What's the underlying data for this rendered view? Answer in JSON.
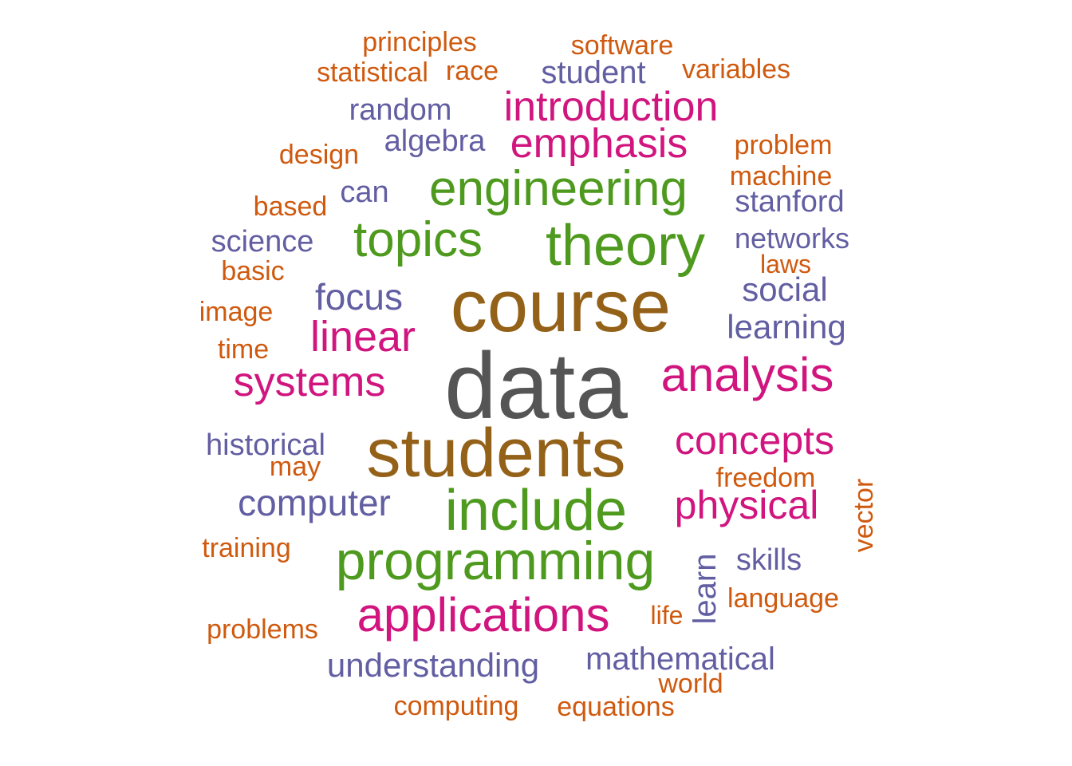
{
  "colors": {
    "gray": "#555555",
    "brown": "#946119",
    "green": "#4e9a1e",
    "magenta": "#d1157f",
    "purple": "#625ea2",
    "orange": "#cf5a0f"
  },
  "words": [
    {
      "text": "data",
      "color": "gray"
    },
    {
      "text": "course",
      "color": "brown"
    },
    {
      "text": "students",
      "color": "brown"
    },
    {
      "text": "theory",
      "color": "green"
    },
    {
      "text": "include",
      "color": "green"
    },
    {
      "text": "programming",
      "color": "green"
    },
    {
      "text": "engineering",
      "color": "green"
    },
    {
      "text": "topics",
      "color": "green"
    },
    {
      "text": "analysis",
      "color": "magenta"
    },
    {
      "text": "applications",
      "color": "magenta"
    },
    {
      "text": "introduction",
      "color": "magenta"
    },
    {
      "text": "emphasis",
      "color": "magenta"
    },
    {
      "text": "linear",
      "color": "magenta"
    },
    {
      "text": "systems",
      "color": "magenta"
    },
    {
      "text": "concepts",
      "color": "magenta"
    },
    {
      "text": "physical",
      "color": "magenta"
    },
    {
      "text": "focus",
      "color": "purple"
    },
    {
      "text": "computer",
      "color": "purple"
    },
    {
      "text": "understanding",
      "color": "purple"
    },
    {
      "text": "mathematical",
      "color": "purple"
    },
    {
      "text": "social",
      "color": "purple"
    },
    {
      "text": "learning",
      "color": "purple"
    },
    {
      "text": "stanford",
      "color": "purple"
    },
    {
      "text": "networks",
      "color": "purple"
    },
    {
      "text": "student",
      "color": "purple"
    },
    {
      "text": "random",
      "color": "purple"
    },
    {
      "text": "algebra",
      "color": "purple"
    },
    {
      "text": "can",
      "color": "purple"
    },
    {
      "text": "science",
      "color": "purple"
    },
    {
      "text": "historical",
      "color": "purple"
    },
    {
      "text": "skills",
      "color": "purple"
    },
    {
      "text": "learn",
      "color": "purple"
    },
    {
      "text": "principles",
      "color": "orange"
    },
    {
      "text": "software",
      "color": "orange"
    },
    {
      "text": "statistical",
      "color": "orange"
    },
    {
      "text": "race",
      "color": "orange"
    },
    {
      "text": "variables",
      "color": "orange"
    },
    {
      "text": "design",
      "color": "orange"
    },
    {
      "text": "problem",
      "color": "orange"
    },
    {
      "text": "machine",
      "color": "orange"
    },
    {
      "text": "based",
      "color": "orange"
    },
    {
      "text": "basic",
      "color": "orange"
    },
    {
      "text": "laws",
      "color": "orange"
    },
    {
      "text": "image",
      "color": "orange"
    },
    {
      "text": "time",
      "color": "orange"
    },
    {
      "text": "may",
      "color": "orange"
    },
    {
      "text": "freedom",
      "color": "orange"
    },
    {
      "text": "vector",
      "color": "orange"
    },
    {
      "text": "training",
      "color": "orange"
    },
    {
      "text": "language",
      "color": "orange"
    },
    {
      "text": "life",
      "color": "orange"
    },
    {
      "text": "problems",
      "color": "orange"
    },
    {
      "text": "world",
      "color": "orange"
    },
    {
      "text": "computing",
      "color": "orange"
    },
    {
      "text": "equations",
      "color": "orange"
    }
  ]
}
